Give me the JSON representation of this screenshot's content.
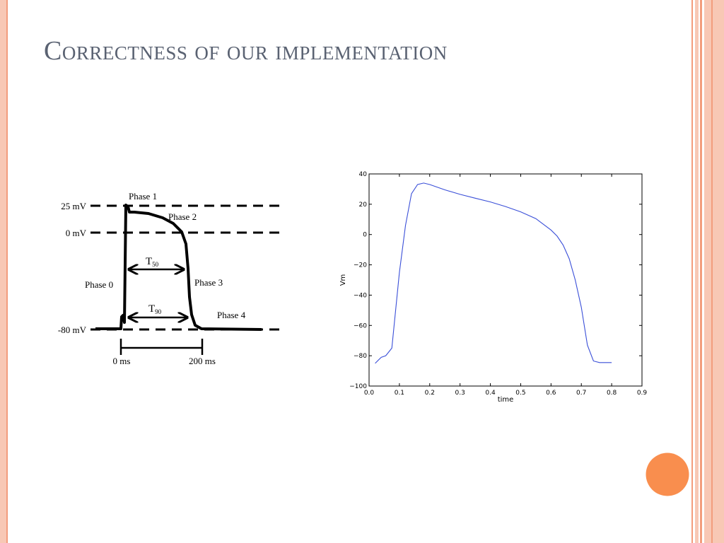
{
  "slide": {
    "title": "Correctness of our implementation",
    "accent_color": "#f98e4e",
    "border_color": "#f6b9a1"
  },
  "diagram": {
    "level_labels": [
      "25 mV",
      "0 mV",
      "-80 mV"
    ],
    "phase_labels": [
      "Phase 1",
      "Phase 2",
      "Phase 0",
      "Phase 3",
      "Phase 4"
    ],
    "t50_label": "T",
    "t50_sub": "50",
    "t90_label": "T",
    "t90_sub": "90",
    "time_labels": [
      "0 ms",
      "200 ms"
    ]
  },
  "chart_data": {
    "type": "line",
    "title": "",
    "xlabel": "time",
    "ylabel": "Vm",
    "xlim": [
      0.0,
      0.9
    ],
    "ylim": [
      -100,
      40
    ],
    "xticks": [
      0.0,
      0.1,
      0.2,
      0.3,
      0.4,
      0.5,
      0.6,
      0.7,
      0.8,
      0.9
    ],
    "yticks": [
      -100,
      -80,
      -60,
      -40,
      -20,
      0,
      20,
      40
    ],
    "xtick_labels": [
      "0.0",
      "0.1",
      "0.2",
      "0.3",
      "0.4",
      "0.5",
      "0.6",
      "0.7",
      "0.8",
      "0.9"
    ],
    "ytick_labels": [
      "−100",
      "−80",
      "−60",
      "−40",
      "−20",
      "0",
      "20",
      "40"
    ],
    "grid": false,
    "line_color": "#3a4fd8",
    "series": [
      {
        "x": [
          0.02,
          0.04,
          0.055,
          0.075,
          0.1,
          0.12,
          0.14,
          0.16,
          0.18,
          0.2,
          0.25,
          0.3,
          0.35,
          0.4,
          0.45,
          0.5,
          0.55,
          0.6,
          0.62,
          0.64,
          0.66,
          0.68,
          0.7,
          0.72,
          0.74,
          0.76,
          0.8
        ],
        "y": [
          -85,
          -81,
          -80,
          -75,
          -25,
          6,
          27,
          33,
          34,
          33,
          29.5,
          26.5,
          24,
          21.5,
          18.5,
          15,
          10.5,
          3,
          -1,
          -7,
          -16,
          -30,
          -48,
          -73,
          -83.5,
          -84.5,
          -84.5
        ]
      }
    ]
  }
}
